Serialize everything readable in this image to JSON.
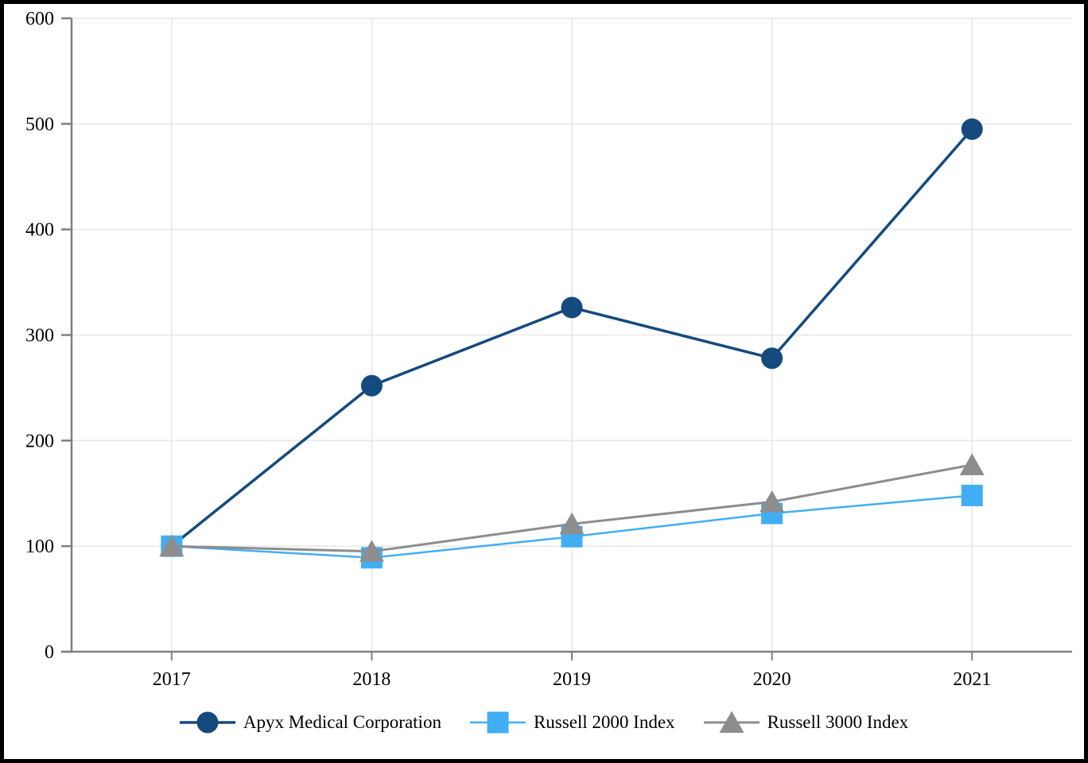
{
  "chart_data": {
    "type": "line",
    "title": "",
    "xlabel": "",
    "ylabel": "",
    "categories": [
      "2017",
      "2018",
      "2019",
      "2020",
      "2021"
    ],
    "series": [
      {
        "name": "Apyx Medical Corporation",
        "marker": "circle",
        "color": "#154A7E",
        "values": [
          100,
          252,
          326,
          278,
          495
        ]
      },
      {
        "name": "Russell 2000 Index",
        "marker": "square",
        "color": "#41AEF4",
        "values": [
          100,
          89,
          109,
          131,
          148
        ]
      },
      {
        "name": "Russell 3000 Index",
        "marker": "triangle",
        "color": "#8D8D8D",
        "values": [
          100,
          95,
          121,
          142,
          177
        ]
      }
    ],
    "ylim": [
      0,
      600
    ],
    "yticks": [
      0,
      100,
      200,
      300,
      400,
      500,
      600
    ],
    "grid": true,
    "legend_position": "bottom",
    "colors": {
      "grid": "#E7E7E7",
      "axis": "#808080",
      "text": "#000000",
      "background": "#FFFFFF",
      "border": "#000000"
    }
  }
}
